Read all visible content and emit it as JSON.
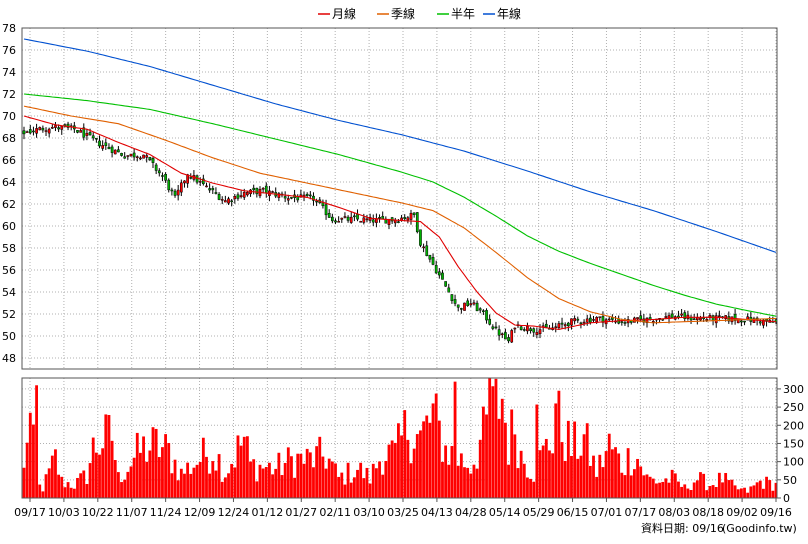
{
  "chart_data": {
    "type": "candlestick",
    "legend": [
      {
        "name": "月線",
        "color": "#e00000"
      },
      {
        "name": "季線",
        "color": "#e06000"
      },
      {
        "name": "半年",
        "color": "#00c000"
      },
      {
        "name": "年線",
        "color": "#0050d0"
      }
    ],
    "legend_placement": "top-center",
    "grid": true,
    "price_axis": {
      "ylim": [
        47,
        78
      ],
      "ticks": [
        48,
        50,
        52,
        54,
        56,
        58,
        60,
        62,
        64,
        66,
        68,
        70,
        72,
        74,
        76,
        78
      ]
    },
    "volume_axis": {
      "ylim": [
        0,
        330
      ],
      "ticks": [
        0,
        50,
        100,
        150,
        200,
        250,
        300
      ]
    },
    "x_tick_labels": [
      "09/17",
      "10/03",
      "10/22",
      "11/07",
      "11/24",
      "12/09",
      "12/24",
      "01/12",
      "01/27",
      "02/11",
      "03/10",
      "03/25",
      "04/13",
      "04/28",
      "05/14",
      "05/29",
      "06/15",
      "07/01",
      "07/17",
      "08/03",
      "08/18",
      "09/02",
      "09/16"
    ],
    "close_keypoints": [
      [
        0,
        68.5
      ],
      [
        8,
        69.0
      ],
      [
        16,
        68.8
      ],
      [
        24,
        67.5
      ],
      [
        32,
        66.4
      ],
      [
        38,
        66.5
      ],
      [
        44,
        64.5
      ],
      [
        48,
        62.5
      ],
      [
        52,
        64.8
      ],
      [
        58,
        63.5
      ],
      [
        64,
        62.3
      ],
      [
        70,
        63.0
      ],
      [
        76,
        63.2
      ],
      [
        84,
        62.6
      ],
      [
        92,
        62.5
      ],
      [
        98,
        60.6
      ],
      [
        106,
        60.6
      ],
      [
        112,
        60.5
      ],
      [
        118,
        60.6
      ],
      [
        124,
        61.0
      ],
      [
        126,
        58.5
      ],
      [
        130,
        56.5
      ],
      [
        134,
        54.5
      ],
      [
        138,
        52.5
      ],
      [
        142,
        53.0
      ],
      [
        146,
        52.0
      ],
      [
        150,
        50.5
      ],
      [
        154,
        49.5
      ],
      [
        156,
        51.0
      ],
      [
        162,
        50.6
      ],
      [
        168,
        50.7
      ],
      [
        174,
        51.3
      ],
      [
        182,
        51.6
      ],
      [
        190,
        51.3
      ],
      [
        198,
        51.5
      ],
      [
        206,
        51.8
      ],
      [
        214,
        51.6
      ],
      [
        222,
        51.6
      ],
      [
        230,
        51.5
      ],
      [
        236,
        51.3
      ],
      [
        239,
        51.2
      ]
    ],
    "moving_averages": [
      {
        "name": "月線",
        "keypoints": [
          [
            0,
            70.0
          ],
          [
            10,
            69.2
          ],
          [
            20,
            68.8
          ],
          [
            30,
            67.6
          ],
          [
            40,
            66.5
          ],
          [
            50,
            64.8
          ],
          [
            60,
            63.9
          ],
          [
            70,
            63.2
          ],
          [
            80,
            62.9
          ],
          [
            90,
            62.6
          ],
          [
            100,
            61.7
          ],
          [
            110,
            60.7
          ],
          [
            120,
            60.5
          ],
          [
            126,
            60.4
          ],
          [
            132,
            59.0
          ],
          [
            138,
            56.3
          ],
          [
            144,
            54.0
          ],
          [
            150,
            52.1
          ],
          [
            156,
            51.0
          ],
          [
            162,
            50.9
          ],
          [
            170,
            50.6
          ],
          [
            180,
            51.2
          ],
          [
            190,
            51.4
          ],
          [
            200,
            51.5
          ],
          [
            210,
            51.7
          ],
          [
            220,
            51.7
          ],
          [
            230,
            51.5
          ],
          [
            239,
            51.3
          ]
        ]
      },
      {
        "name": "季線",
        "keypoints": [
          [
            0,
            70.9
          ],
          [
            15,
            70.0
          ],
          [
            30,
            69.3
          ],
          [
            45,
            67.8
          ],
          [
            60,
            66.2
          ],
          [
            75,
            64.8
          ],
          [
            90,
            63.9
          ],
          [
            105,
            63.0
          ],
          [
            120,
            62.1
          ],
          [
            130,
            61.4
          ],
          [
            140,
            59.8
          ],
          [
            150,
            57.6
          ],
          [
            160,
            55.3
          ],
          [
            170,
            53.4
          ],
          [
            180,
            52.2
          ],
          [
            190,
            51.5
          ],
          [
            200,
            51.2
          ],
          [
            210,
            51.3
          ],
          [
            220,
            51.4
          ],
          [
            230,
            51.5
          ],
          [
            239,
            51.6
          ]
        ]
      },
      {
        "name": "半年",
        "keypoints": [
          [
            0,
            72.0
          ],
          [
            20,
            71.4
          ],
          [
            40,
            70.6
          ],
          [
            60,
            69.3
          ],
          [
            80,
            67.9
          ],
          [
            100,
            66.5
          ],
          [
            120,
            64.9
          ],
          [
            130,
            64.0
          ],
          [
            140,
            62.6
          ],
          [
            150,
            60.9
          ],
          [
            160,
            59.1
          ],
          [
            170,
            57.7
          ],
          [
            180,
            56.6
          ],
          [
            190,
            55.6
          ],
          [
            200,
            54.6
          ],
          [
            210,
            53.7
          ],
          [
            220,
            52.9
          ],
          [
            230,
            52.3
          ],
          [
            239,
            51.8
          ]
        ]
      },
      {
        "name": "年線",
        "keypoints": [
          [
            0,
            77.0
          ],
          [
            20,
            75.9
          ],
          [
            40,
            74.5
          ],
          [
            60,
            72.8
          ],
          [
            80,
            71.1
          ],
          [
            100,
            69.6
          ],
          [
            120,
            68.3
          ],
          [
            140,
            66.8
          ],
          [
            160,
            65.0
          ],
          [
            180,
            63.1
          ],
          [
            200,
            61.4
          ],
          [
            220,
            59.5
          ],
          [
            239,
            57.6
          ]
        ]
      }
    ],
    "volume_keypoints": [
      [
        0,
        80
      ],
      [
        1,
        210
      ],
      [
        2,
        230
      ],
      [
        3,
        150
      ],
      [
        4,
        40
      ],
      [
        6,
        30
      ],
      [
        10,
        120
      ],
      [
        12,
        50
      ],
      [
        16,
        40
      ],
      [
        20,
        70
      ],
      [
        22,
        150
      ],
      [
        24,
        170
      ],
      [
        28,
        190
      ],
      [
        30,
        60
      ],
      [
        36,
        135
      ],
      [
        38,
        150
      ],
      [
        42,
        160
      ],
      [
        46,
        140
      ],
      [
        50,
        75
      ],
      [
        56,
        120
      ],
      [
        60,
        150
      ],
      [
        64,
        80
      ],
      [
        70,
        180
      ],
      [
        72,
        100
      ],
      [
        80,
        90
      ],
      [
        86,
        120
      ],
      [
        90,
        115
      ],
      [
        96,
        130
      ],
      [
        100,
        60
      ],
      [
        106,
        90
      ],
      [
        110,
        60
      ],
      [
        114,
        140
      ],
      [
        118,
        130
      ],
      [
        122,
        220
      ],
      [
        126,
        180
      ],
      [
        130,
        250
      ],
      [
        134,
        150
      ],
      [
        138,
        120
      ],
      [
        142,
        100
      ],
      [
        146,
        190
      ],
      [
        150,
        280
      ],
      [
        152,
        310
      ],
      [
        154,
        160
      ],
      [
        156,
        230
      ],
      [
        158,
        130
      ],
      [
        162,
        80
      ],
      [
        166,
        150
      ],
      [
        170,
        230
      ],
      [
        174,
        150
      ],
      [
        178,
        180
      ],
      [
        182,
        80
      ],
      [
        186,
        160
      ],
      [
        190,
        100
      ],
      [
        194,
        140
      ],
      [
        198,
        60
      ],
      [
        202,
        50
      ],
      [
        206,
        60
      ],
      [
        210,
        30
      ],
      [
        214,
        60
      ],
      [
        218,
        40
      ],
      [
        222,
        60
      ],
      [
        226,
        30
      ],
      [
        230,
        20
      ],
      [
        234,
        50
      ],
      [
        239,
        40
      ]
    ],
    "volume_overrides": {
      "4": 310,
      "137": 320,
      "148": 330,
      "145": 160,
      "163": 257,
      "169": 260
    }
  },
  "footer": {
    "date_label": "資料日期: 09/16",
    "source": "(Goodinfo.tw)"
  }
}
